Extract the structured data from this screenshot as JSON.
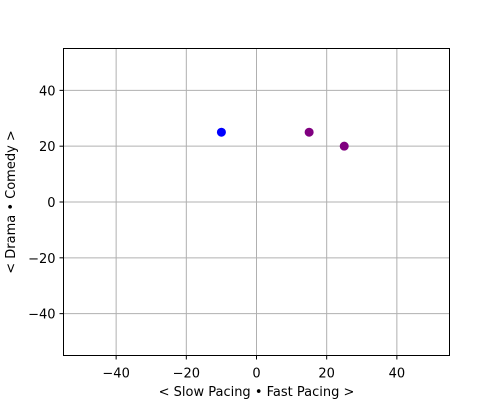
{
  "chart_data": {
    "type": "scatter",
    "title": "",
    "xlabel": "< Slow Pacing • Fast Pacing >",
    "ylabel": "< Drama • Comedy >",
    "xlim": [
      -55,
      55
    ],
    "ylim": [
      -55,
      55
    ],
    "grid": true,
    "x_ticks": [
      -40,
      -20,
      0,
      20,
      40
    ],
    "y_ticks": [
      -40,
      -20,
      0,
      20,
      40
    ],
    "x_tick_labels": [
      "−40",
      "−20",
      "0",
      "20",
      "40"
    ],
    "y_tick_labels": [
      "−40",
      "−20",
      "0",
      "20",
      "40"
    ],
    "points": [
      {
        "x": -10,
        "y": 25,
        "color": "#0000ff"
      },
      {
        "x": 15,
        "y": 25,
        "color": "#800080"
      },
      {
        "x": 25,
        "y": 20,
        "color": "#800080"
      }
    ]
  },
  "colors": {
    "grid": "#b0b0b0",
    "axes": "#000000"
  }
}
